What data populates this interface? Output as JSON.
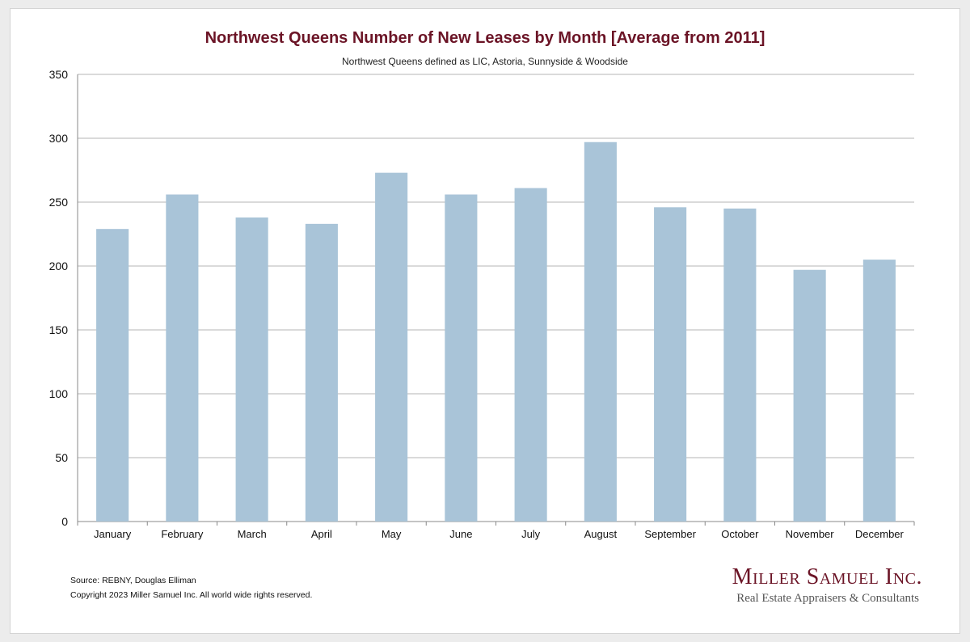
{
  "chart_data": {
    "type": "bar",
    "title": "Northwest Queens Number of New Leases by Month [Average from 2011]",
    "subtitle": "Northwest Queens defined as LIC, Astoria, Sunnyside & Woodside",
    "categories": [
      "January",
      "February",
      "March",
      "April",
      "May",
      "June",
      "July",
      "August",
      "September",
      "October",
      "November",
      "December"
    ],
    "values": [
      229,
      256,
      238,
      233,
      273,
      256,
      261,
      297,
      246,
      245,
      197,
      205
    ],
    "ylim": [
      0,
      350
    ],
    "yticks": [
      0,
      50,
      100,
      150,
      200,
      250,
      300,
      350
    ],
    "xlabel": "",
    "ylabel": "",
    "grid": true,
    "legend": "none",
    "bar_color": "#a9c4d8"
  },
  "footer": {
    "source": "Source: REBNY, Douglas Elliman",
    "copyright": "Copyright 2023 Miller Samuel Inc.  All world wide rights reserved."
  },
  "logo": {
    "name": "Miller Samuel Inc.",
    "tagline": "Real Estate Appraisers & Consultants"
  },
  "colors": {
    "title": "#6b1426",
    "grid": "#b5b5b5",
    "axis": "#888888"
  }
}
